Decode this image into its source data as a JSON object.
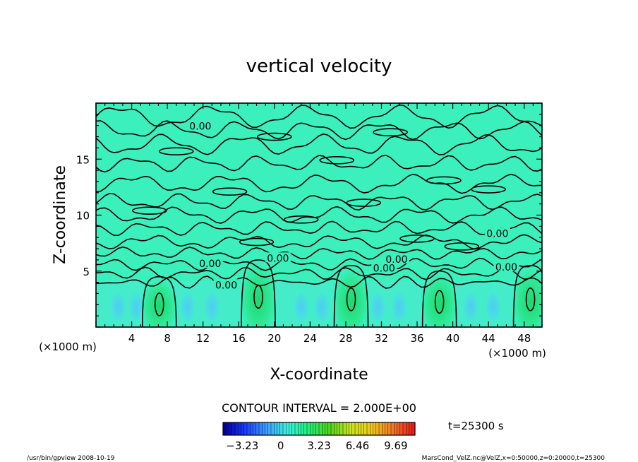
{
  "chart_data": {
    "type": "heatmap",
    "title": "vertical velocity",
    "xlabel": "X-coordinate",
    "ylabel": "Z-coordinate",
    "x_unit_left": "(×1000 m)",
    "x_unit_right": "(×1000 m)",
    "xlim": [
      0,
      50
    ],
    "ylim": [
      0,
      20
    ],
    "x_ticks": [
      4,
      8,
      12,
      16,
      20,
      24,
      28,
      32,
      36,
      40,
      44,
      48
    ],
    "x_tick_labels": [
      "4",
      "8",
      "12",
      "16",
      "20",
      "24",
      "28",
      "32",
      "36",
      "40",
      "44",
      "48"
    ],
    "y_ticks": [
      5,
      10,
      15
    ],
    "y_tick_labels": [
      "5",
      "10",
      "15"
    ],
    "contour_labels": [
      {
        "text": "0.00",
        "x": 11.7,
        "y": 17.9
      },
      {
        "text": "0.00",
        "x": 12.8,
        "y": 5.6
      },
      {
        "text": "0.00",
        "x": 14.6,
        "y": 3.7
      },
      {
        "text": "0.00",
        "x": 20.4,
        "y": 6.1
      },
      {
        "text": "0.00",
        "x": 32.3,
        "y": 5.2
      },
      {
        "text": "0.00",
        "x": 33.7,
        "y": 6.0
      },
      {
        "text": "0.00",
        "x": 45.0,
        "y": 8.3
      },
      {
        "text": "0.00",
        "x": 46.0,
        "y": 5.3
      }
    ],
    "updrafts": [
      {
        "x": 7.1,
        "peak": 4.5
      },
      {
        "x": 18.2,
        "peak": 6.0
      },
      {
        "x": 28.6,
        "peak": 5.5
      },
      {
        "x": 38.5,
        "peak": 5.0
      },
      {
        "x": 48.7,
        "peak": 5.5
      }
    ],
    "contour_interval_text": "CONTOUR INTERVAL = 2.000E+00",
    "time_text": "t=25300 s",
    "colorbar": {
      "min": -4.85,
      "max": 11.3,
      "labels": [
        "−3.23",
        "0",
        "3.23",
        "6.46",
        "9.69"
      ],
      "label_values": [
        -3.23,
        0,
        3.23,
        6.46,
        9.69
      ],
      "colors": [
        "#0000a0",
        "#1a3cff",
        "#3ca0ff",
        "#3cf0dc",
        "#1ef078",
        "#50d21e",
        "#c8e61e",
        "#f0c81e",
        "#f07828",
        "#e61e1e"
      ]
    },
    "footer_left": "/usr/bin/gpview   2008-10-19",
    "footer_right": "MarsCond_VelZ.nc@VelZ,x=0:50000,z=0:20000,t=25300"
  }
}
